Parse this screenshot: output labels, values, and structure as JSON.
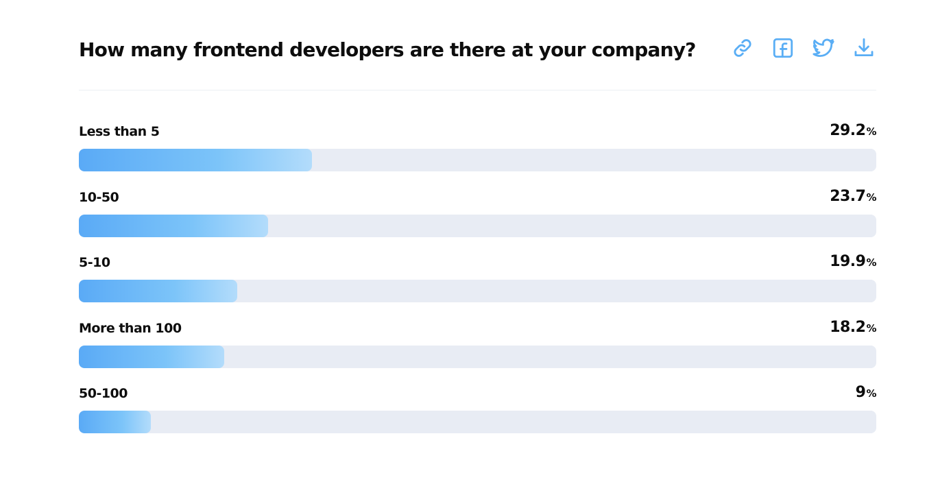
{
  "title": "How many frontend developers are there at your company?",
  "actions": [
    {
      "icon": "link-icon"
    },
    {
      "icon": "facebook-icon"
    },
    {
      "icon": "twitter-icon"
    },
    {
      "icon": "download-icon"
    }
  ],
  "colors": {
    "bar_start": "#5aaaf6",
    "bar_end": "#b3dcfb",
    "track": "#e8ecf4",
    "icon": "#5aaef5"
  },
  "chart_data": {
    "type": "bar",
    "orientation": "horizontal",
    "unit": "%",
    "categories": [
      "Less than 5",
      "10-50",
      "5-10",
      "More than 100",
      "50-100"
    ],
    "values": [
      29.2,
      23.7,
      19.9,
      18.2,
      9
    ],
    "value_labels": [
      "29.2",
      "23.7",
      "19.9",
      "18.2",
      "9"
    ],
    "xlim": [
      0,
      100
    ],
    "grid": false,
    "legend": "none"
  }
}
